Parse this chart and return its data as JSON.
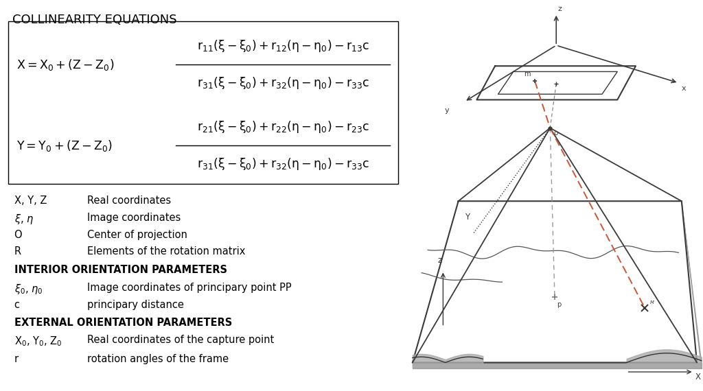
{
  "title": "COLLINEARITY EQUATIONS",
  "title_fontsize": 13,
  "bg_color": "#ffffff",
  "text_color": "#000000",
  "diagram_color": "#3a3a3a",
  "ray_color": "#cc5533",
  "dashed_color": "#888888",
  "section1_title": "INTERIOR ORIENTATION PARAMETERS",
  "section2_title": "EXTERNAL ORIENTATION PARAMETERS"
}
